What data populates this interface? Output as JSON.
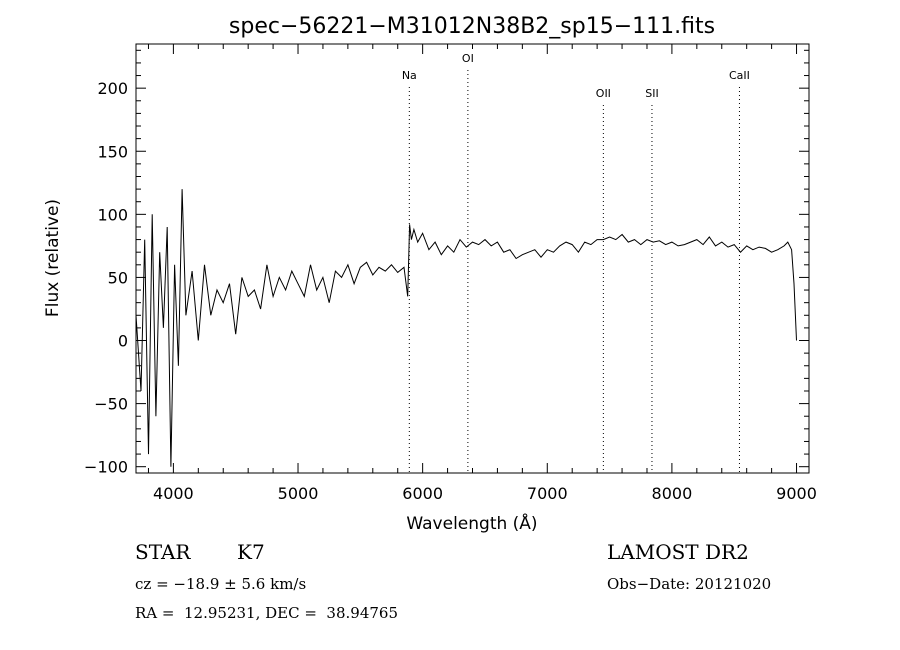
{
  "chart_data": {
    "type": "line",
    "title": "spec−56221−M31012N38B2_sp15−111.fits",
    "xlabel": "Wavelength (Å)",
    "ylabel": "Flux (relative)",
    "xlim": [
      3700,
      9100
    ],
    "ylim": [
      -105,
      235
    ],
    "x_ticks": [
      4000,
      5000,
      6000,
      7000,
      8000,
      9000
    ],
    "x_tick_labels": [
      "4000",
      "5000",
      "6000",
      "7000",
      "8000",
      "9000"
    ],
    "y_ticks": [
      -100,
      -50,
      0,
      50,
      100,
      150,
      200
    ],
    "y_tick_labels": [
      "−100",
      "−50",
      "0",
      "50",
      "100",
      "150",
      "200"
    ],
    "grid": false,
    "lines": [
      {
        "label": "Na",
        "x": 5893
      },
      {
        "label": "OI",
        "x": 6363
      },
      {
        "label": "OII",
        "x": 7450
      },
      {
        "label": "SII",
        "x": 7840
      },
      {
        "label": "CaII",
        "x": 8542
      }
    ],
    "series": [
      {
        "x": [
          3700,
          3740,
          3770,
          3800,
          3830,
          3860,
          3890,
          3920,
          3950,
          3980,
          4010,
          4040,
          4070,
          4100,
          4150,
          4200,
          4250,
          4300,
          4350,
          4400,
          4450,
          4500,
          4550,
          4600,
          4650,
          4700,
          4750,
          4800,
          4850,
          4900,
          4950,
          5000,
          5050,
          5100,
          5150,
          5200,
          5250,
          5300,
          5350,
          5400,
          5450,
          5500,
          5550,
          5600,
          5650,
          5700,
          5750,
          5800,
          5850,
          5880,
          5895,
          5910,
          5930,
          5960,
          6000,
          6050,
          6100,
          6150,
          6200,
          6250,
          6300,
          6350,
          6400,
          6450,
          6500,
          6550,
          6600,
          6650,
          6700,
          6750,
          6800,
          6850,
          6900,
          6950,
          7000,
          7050,
          7100,
          7150,
          7200,
          7250,
          7300,
          7350,
          7400,
          7450,
          7500,
          7550,
          7600,
          7650,
          7700,
          7750,
          7800,
          7850,
          7900,
          7950,
          8000,
          8050,
          8100,
          8150,
          8200,
          8250,
          8300,
          8350,
          8400,
          8450,
          8500,
          8550,
          8600,
          8650,
          8700,
          8750,
          8800,
          8850,
          8900,
          8930,
          8960,
          8980,
          9000
        ],
        "y": [
          20,
          -40,
          80,
          -90,
          100,
          -60,
          70,
          10,
          90,
          -100,
          60,
          -20,
          120,
          20,
          55,
          0,
          60,
          20,
          40,
          30,
          45,
          5,
          50,
          35,
          40,
          25,
          60,
          35,
          50,
          40,
          55,
          45,
          35,
          60,
          40,
          50,
          30,
          55,
          50,
          60,
          45,
          58,
          62,
          52,
          58,
          55,
          60,
          54,
          58,
          35,
          92,
          80,
          88,
          78,
          85,
          72,
          78,
          68,
          75,
          70,
          80,
          74,
          78,
          76,
          80,
          75,
          78,
          70,
          72,
          65,
          68,
          70,
          72,
          66,
          72,
          70,
          75,
          78,
          76,
          70,
          78,
          76,
          80,
          80,
          82,
          80,
          84,
          78,
          80,
          76,
          80,
          78,
          79,
          76,
          78,
          75,
          76,
          78,
          80,
          76,
          82,
          75,
          78,
          74,
          76,
          70,
          75,
          72,
          74,
          73,
          70,
          72,
          75,
          78,
          72,
          45,
          0
        ]
      }
    ]
  },
  "info": {
    "object_class": "STAR",
    "subclass": "K7",
    "survey": "LAMOST DR2",
    "cz_line": "cz = −18.9 ± 5.6 km/s",
    "obs_date_line": "Obs−Date: 20121020",
    "coords_line": "RA =  12.95231, DEC =  38.94765"
  }
}
